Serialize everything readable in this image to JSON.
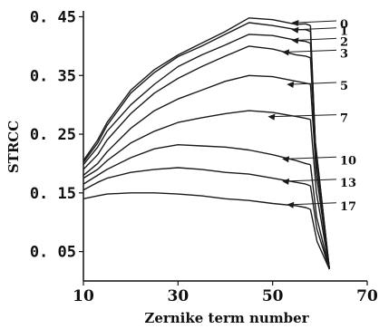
{
  "chart_data": {
    "type": "line",
    "title": "",
    "xlabel": "Zernike term number",
    "ylabel": "STRCC",
    "xlim": [
      10,
      70
    ],
    "ylim": [
      0,
      0.46
    ],
    "xticks": [
      "10",
      "30",
      "50",
      "70"
    ],
    "yticks": [
      "0. 45",
      "0. 35",
      "0. 25",
      "0. 15",
      "0. 05"
    ],
    "ytick_values": [
      0.45,
      0.35,
      0.25,
      0.15,
      0.05
    ],
    "xtick_values": [
      10,
      30,
      50,
      70
    ],
    "grid": false,
    "legend": "none",
    "series": [
      {
        "name": "0",
        "x": [
          10,
          13,
          15,
          20,
          25,
          30,
          35,
          40,
          45,
          50,
          55,
          57,
          58
        ],
        "y": [
          0.205,
          0.24,
          0.27,
          0.325,
          0.36,
          0.385,
          0.405,
          0.425,
          0.448,
          0.445,
          0.437,
          0.438,
          0.435
        ],
        "label_x": 54,
        "label_y": 0.44
      },
      {
        "name": "1",
        "x": [
          10,
          13,
          15,
          20,
          25,
          30,
          35,
          40,
          45,
          50,
          55,
          57,
          58
        ],
        "y": [
          0.202,
          0.235,
          0.265,
          0.32,
          0.355,
          0.382,
          0.4,
          0.42,
          0.44,
          0.435,
          0.428,
          0.428,
          0.425
        ],
        "label_x": 54,
        "label_y": 0.428
      },
      {
        "name": "2",
        "x": [
          10,
          13,
          15,
          20,
          25,
          30,
          35,
          40,
          45,
          50,
          55,
          57,
          58
        ],
        "y": [
          0.198,
          0.228,
          0.255,
          0.3,
          0.335,
          0.365,
          0.385,
          0.402,
          0.42,
          0.418,
          0.41,
          0.408,
          0.405
        ],
        "label_x": 54,
        "label_y": 0.41
      },
      {
        "name": "3",
        "x": [
          10,
          13,
          15,
          20,
          25,
          30,
          35,
          40,
          45,
          50,
          55,
          57,
          58
        ],
        "y": [
          0.19,
          0.215,
          0.24,
          0.285,
          0.32,
          0.345,
          0.365,
          0.383,
          0.4,
          0.395,
          0.385,
          0.383,
          0.38
        ],
        "label_x": 52,
        "label_y": 0.39
      },
      {
        "name": "5",
        "x": [
          10,
          13,
          15,
          20,
          25,
          30,
          35,
          40,
          45,
          50,
          55,
          57,
          58
        ],
        "y": [
          0.18,
          0.2,
          0.22,
          0.26,
          0.29,
          0.31,
          0.325,
          0.34,
          0.35,
          0.348,
          0.34,
          0.337,
          0.335
        ],
        "label_x": 53,
        "label_y": 0.335
      },
      {
        "name": "7",
        "x": [
          10,
          13,
          15,
          20,
          25,
          30,
          35,
          40,
          45,
          50,
          55,
          57,
          58
        ],
        "y": [
          0.175,
          0.19,
          0.205,
          0.235,
          0.255,
          0.27,
          0.278,
          0.285,
          0.29,
          0.287,
          0.28,
          0.277,
          0.275
        ],
        "label_x": 49,
        "label_y": 0.28
      },
      {
        "name": "10",
        "x": [
          10,
          13,
          15,
          20,
          25,
          30,
          35,
          40,
          45,
          50,
          55,
          57,
          58
        ],
        "y": [
          0.165,
          0.18,
          0.19,
          0.21,
          0.225,
          0.232,
          0.23,
          0.228,
          0.223,
          0.215,
          0.205,
          0.2,
          0.198
        ],
        "label_x": 52,
        "label_y": 0.208
      },
      {
        "name": "13",
        "x": [
          10,
          13,
          15,
          20,
          25,
          30,
          35,
          40,
          45,
          50,
          55,
          57,
          58
        ],
        "y": [
          0.155,
          0.168,
          0.175,
          0.185,
          0.19,
          0.193,
          0.19,
          0.185,
          0.182,
          0.175,
          0.168,
          0.165,
          0.162
        ],
        "label_x": 52,
        "label_y": 0.17
      },
      {
        "name": "17",
        "x": [
          10,
          13,
          15,
          20,
          25,
          30,
          35,
          40,
          45,
          50,
          55,
          57,
          58
        ],
        "y": [
          0.14,
          0.145,
          0.148,
          0.15,
          0.15,
          0.148,
          0.145,
          0.14,
          0.137,
          0.132,
          0.128,
          0.125,
          0.122
        ],
        "label_x": 53,
        "label_y": 0.13
      }
    ],
    "drop": {
      "x": [
        58,
        59,
        60,
        61,
        62
      ],
      "y": [
        0.44,
        0.3,
        0.15,
        0.07,
        0.02
      ]
    }
  }
}
